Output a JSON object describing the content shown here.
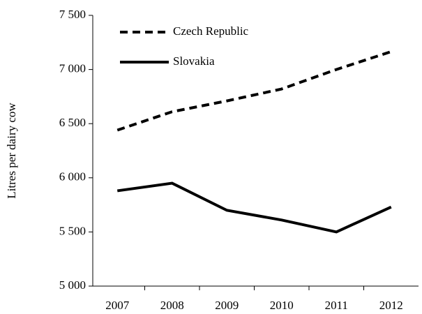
{
  "chart_data": {
    "type": "line",
    "y_label": "Litres per dairy cow",
    "categories": [
      "2007",
      "2008",
      "2009",
      "2010",
      "2011",
      "2012"
    ],
    "series": [
      {
        "name": "Czech Republic",
        "color": "#000000",
        "line_style": "dashed",
        "values": [
          6440,
          6610,
          6710,
          6820,
          7000,
          7165
        ]
      },
      {
        "name": "Slovakia",
        "color": "#000000",
        "line_style": "solid",
        "values": [
          5880,
          5950,
          5700,
          5610,
          5500,
          5730
        ]
      }
    ],
    "ylim": [
      5000,
      7500
    ],
    "yticks": [
      {
        "value": 5000,
        "label": "5 000"
      },
      {
        "value": 5500,
        "label": "5 500"
      },
      {
        "value": 6000,
        "label": "6 000"
      },
      {
        "value": 6500,
        "label": "6 500"
      },
      {
        "value": 7000,
        "label": "7 000"
      },
      {
        "value": 7500,
        "label": "7 500"
      }
    ],
    "legend": "top-left",
    "grid": false
  }
}
